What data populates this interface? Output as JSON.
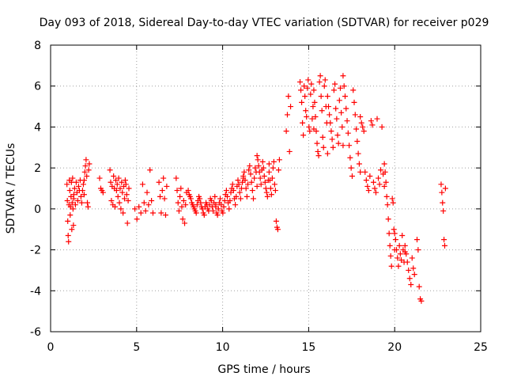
{
  "chart_data": {
    "type": "scatter",
    "title": "Day 093 of 2018, Sidereal Day-to-day VTEC variation (SDTVAR) for receiver p029",
    "xlabel": "GPS time / hours",
    "ylabel": "SDTVAR / TECUs",
    "xlim": [
      0,
      25
    ],
    "ylim": [
      -6,
      8
    ],
    "xticks": [
      0,
      5,
      10,
      15,
      20,
      25
    ],
    "yticks": [
      -6,
      -4,
      -2,
      0,
      2,
      4,
      6,
      8
    ],
    "xtick_labels": [
      "0",
      "5",
      "10",
      "15",
      "20",
      "25"
    ],
    "ytick_labels": [
      "-6",
      "-4",
      "-2",
      "0",
      "2",
      "4",
      "6",
      "8"
    ],
    "grid": true,
    "legend": "none",
    "marker": "+",
    "series": [
      {
        "name": "SDTVAR",
        "color": "#ff0000",
        "segments": [
          {
            "x0": 0.95,
            "x1": 1.35,
            "y": [
              1.2,
              0.4,
              -0.6,
              -1.3,
              -1.6,
              0.2,
              1.4,
              0.9,
              -0.3,
              0.1,
              0.6,
              1.3,
              -1.0,
              0.3,
              1.5,
              0.0,
              -0.8,
              0.7
            ]
          },
          {
            "x0": 1.35,
            "x1": 1.95,
            "y": [
              0.5,
              1.0,
              0.2,
              1.3,
              0.8,
              0.4,
              1.1,
              0.9,
              1.4,
              0.6,
              0.3,
              0.9,
              1.2,
              0.7
            ]
          },
          {
            "x0": 1.95,
            "x1": 2.25,
            "y": [
              1.4,
              1.8,
              2.1,
              2.4,
              1.6,
              0.3,
              0.1,
              1.9,
              2.2
            ]
          },
          {
            "x0": 2.85,
            "x1": 3.05,
            "y": [
              1.5,
              1.0,
              0.9,
              0.8
            ]
          },
          {
            "x0": 3.45,
            "x1": 4.55,
            "y": [
              1.9,
              1.3,
              0.4,
              1.1,
              0.2,
              1.6,
              1.0,
              0.1,
              1.4,
              0.9,
              1.2,
              0.6,
              1.5,
              0.3,
              1.0,
              0.0,
              1.3,
              0.8,
              -0.2,
              1.1,
              0.5,
              1.4,
              1.2,
              0.7,
              -0.7,
              0.4,
              1.0
            ]
          },
          {
            "x0": 4.9,
            "x1": 5.25,
            "y": [
              0.0,
              -0.5,
              0.1,
              -0.2
            ]
          },
          {
            "x0": 5.35,
            "x1": 5.95,
            "y": [
              1.2,
              0.3,
              -0.1,
              0.8,
              0.2,
              1.9,
              0.4,
              -0.2
            ]
          },
          {
            "x0": 6.3,
            "x1": 6.75,
            "y": [
              1.3,
              0.6,
              -0.2,
              0.9,
              1.5,
              0.5,
              -0.3,
              1.1
            ]
          },
          {
            "x0": 7.3,
            "x1": 7.9,
            "y": [
              1.5,
              0.9,
              0.3,
              -0.1,
              0.6,
              1.0,
              0.1,
              -0.5,
              0.4,
              -0.7,
              0.2,
              0.8
            ]
          },
          {
            "x0": 8.0,
            "x1": 9.6,
            "y": [
              0.9,
              0.7,
              0.6,
              0.5,
              0.3,
              0.2,
              0.1,
              0.0,
              -0.1,
              -0.2,
              0.2,
              0.4,
              0.6,
              0.5,
              0.3,
              0.1,
              0.0,
              -0.2,
              -0.3,
              0.1,
              0.3,
              0.2,
              0.0,
              -0.1,
              0.2,
              0.5,
              0.4,
              0.1,
              -0.1,
              0.3,
              0.6,
              0.2
            ]
          },
          {
            "x0": 9.6,
            "x1": 11.2,
            "y": [
              0.1,
              -0.2,
              -0.3,
              0.0,
              0.3,
              0.5,
              0.2,
              -0.1,
              -0.2,
              0.1,
              0.4,
              0.7,
              0.9,
              0.6,
              0.3,
              0.0,
              0.4,
              0.8,
              1.0,
              1.2,
              0.9,
              0.5,
              0.2,
              0.6,
              1.1,
              1.4,
              1.2,
              0.8,
              0.5,
              1.0,
              1.3,
              1.5
            ]
          },
          {
            "x0": 11.2,
            "x1": 12.0,
            "y": [
              1.6,
              1.8,
              1.4,
              1.0,
              0.6,
              1.2,
              1.9,
              2.1,
              1.7,
              1.3,
              0.9,
              0.5,
              1.5,
              2.0,
              1.8,
              1.1
            ]
          },
          {
            "x0": 12.0,
            "x1": 12.7,
            "y": [
              2.6,
              2.4,
              2.1,
              1.8,
              1.5,
              1.2,
              1.9,
              2.3,
              2.0,
              1.6,
              1.3,
              1.0,
              0.8,
              0.6,
              1.4,
              2.2
            ]
          },
          {
            "x0": 12.7,
            "x1": 13.3,
            "y": [
              1.8,
              1.4,
              1.0,
              0.7,
              1.5,
              2.0,
              2.3,
              1.2,
              0.9,
              -0.6,
              -0.9,
              -1.0,
              1.9,
              2.4
            ]
          },
          {
            "x0": 13.7,
            "x1": 13.95,
            "y": [
              3.8,
              4.6,
              5.5,
              2.8,
              5.0
            ]
          },
          {
            "x0": 14.5,
            "x1": 15.3,
            "y": [
              6.2,
              5.8,
              5.2,
              4.2,
              3.6,
              6.0,
              5.5,
              4.8,
              4.5,
              5.9,
              6.3,
              4.0,
              3.8,
              5.6,
              6.1,
              4.4,
              5.0,
              3.9
            ]
          },
          {
            "x0": 15.3,
            "x1": 16.1,
            "y": [
              5.8,
              5.2,
              4.5,
              3.8,
              3.2,
              2.8,
              2.6,
              6.2,
              6.5,
              5.5,
              4.8,
              3.5,
              3.0,
              6.0,
              6.3,
              5.0,
              4.2,
              2.7
            ]
          },
          {
            "x0": 16.1,
            "x1": 17.0,
            "y": [
              5.5,
              5.0,
              4.6,
              4.2,
              3.8,
              3.4,
              3.0,
              5.8,
              6.1,
              4.9,
              4.4,
              3.6,
              3.2,
              5.3,
              5.9,
              4.7,
              4.0,
              3.1
            ]
          },
          {
            "x0": 17.0,
            "x1": 18.0,
            "y": [
              6.5,
              6.0,
              5.5,
              4.9,
              4.3,
              3.7,
              3.1,
              2.5,
              2.0,
              1.6,
              5.8,
              5.2,
              4.6,
              3.9,
              3.3,
              2.7,
              2.2,
              1.8
            ]
          },
          {
            "x0": 18.0,
            "x1": 19.4,
            "y": [
              4.5,
              4.2,
              4.0,
              3.8,
              1.8,
              1.4,
              1.1,
              0.9,
              1.6,
              4.3,
              4.1,
              1.3,
              1.0,
              0.8,
              4.4,
              1.5,
              1.2,
              1.9,
              4.0,
              1.7,
              1.1
            ]
          },
          {
            "x0": 19.4,
            "x1": 20.0,
            "y": [
              2.2,
              1.8,
              1.3,
              0.6,
              0.2,
              -0.5,
              -1.2,
              -1.8,
              -2.3,
              -2.8,
              0.5,
              0.3,
              -1.0,
              -2.0
            ]
          },
          {
            "x0": 20.0,
            "x1": 20.6,
            "y": [
              -1.2,
              -1.5,
              -2.0,
              -2.4,
              -2.8,
              -1.8,
              -2.2,
              -2.5,
              -1.3,
              -2.0,
              -2.6,
              -2.1
            ]
          },
          {
            "x0": 20.6,
            "x1": 21.15,
            "y": [
              -1.8,
              -2.2,
              -2.6,
              -3.0,
              -3.4,
              -3.7,
              -2.4,
              -2.9,
              -3.2
            ]
          },
          {
            "x0": 21.3,
            "x1": 21.55,
            "y": [
              -1.5,
              -2.0,
              -3.8,
              -4.4,
              -4.5
            ]
          },
          {
            "x0": 22.7,
            "x1": 22.95,
            "y": [
              1.2,
              0.8,
              0.3,
              -0.1,
              -1.5,
              -1.8,
              1.0
            ]
          }
        ]
      }
    ]
  }
}
